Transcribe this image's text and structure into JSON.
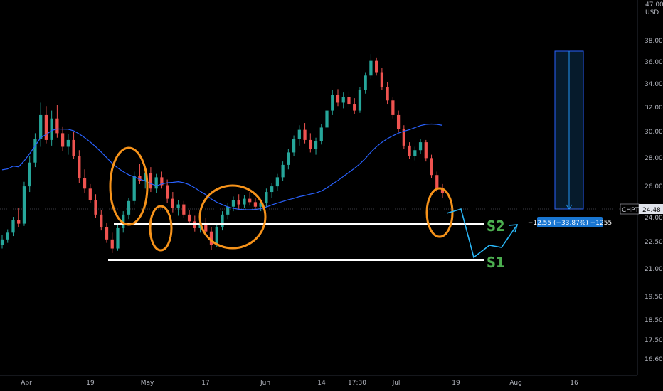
{
  "chart_data": {
    "type": "candlestick",
    "symbol": "CHPT",
    "last_price": "24.48",
    "currency": "USD",
    "y_axis_ticks": [
      "38.00",
      "36.00",
      "34.00",
      "32.00",
      "30.00",
      "28.00",
      "26.00",
      "24.00",
      "22.50",
      "21.00",
      "19.50",
      "18.50",
      "17.50",
      "16.60"
    ],
    "y_axis_top_label": "47.00",
    "x_axis_ticks": [
      "Apr",
      "19",
      "May",
      "17",
      "Jun",
      "14",
      "17:30",
      "Jul",
      "19",
      "Aug",
      "16"
    ],
    "moving_average_color": "#2962ff",
    "support_levels": [
      {
        "name": "S2",
        "price": 23.6
      },
      {
        "name": "S1",
        "price": 21.6
      }
    ],
    "measure_label": "−12.55 (−33.87%) −1255",
    "candles": [
      {
        "o": 19.9,
        "h": 20.8,
        "l": 19.6,
        "c": 20.4
      },
      {
        "o": 20.4,
        "h": 21.3,
        "l": 20.1,
        "c": 21.0
      },
      {
        "o": 21.0,
        "h": 22.4,
        "l": 20.7,
        "c": 22.1
      },
      {
        "o": 22.1,
        "h": 23.2,
        "l": 21.5,
        "c": 21.8
      },
      {
        "o": 21.8,
        "h": 25.5,
        "l": 21.6,
        "c": 25.1
      },
      {
        "o": 25.1,
        "h": 27.8,
        "l": 24.6,
        "c": 27.2
      },
      {
        "o": 27.2,
        "h": 29.8,
        "l": 26.8,
        "c": 29.3
      },
      {
        "o": 29.3,
        "h": 32.5,
        "l": 28.6,
        "c": 31.4
      },
      {
        "o": 31.4,
        "h": 32.2,
        "l": 28.9,
        "c": 29.2
      },
      {
        "o": 29.2,
        "h": 31.8,
        "l": 28.7,
        "c": 31.1
      },
      {
        "o": 31.1,
        "h": 32.3,
        "l": 29.4,
        "c": 29.8
      },
      {
        "o": 29.8,
        "h": 30.4,
        "l": 28.2,
        "c": 28.6
      },
      {
        "o": 28.6,
        "h": 29.7,
        "l": 27.9,
        "c": 29.2
      },
      {
        "o": 29.2,
        "h": 29.9,
        "l": 27.5,
        "c": 27.8
      },
      {
        "o": 27.8,
        "h": 28.3,
        "l": 25.4,
        "c": 25.8
      },
      {
        "o": 25.8,
        "h": 26.6,
        "l": 24.5,
        "c": 24.9
      },
      {
        "o": 24.9,
        "h": 25.3,
        "l": 23.6,
        "c": 23.9
      },
      {
        "o": 23.9,
        "h": 24.4,
        "l": 22.3,
        "c": 22.6
      },
      {
        "o": 22.6,
        "h": 23.0,
        "l": 21.2,
        "c": 21.5
      },
      {
        "o": 21.5,
        "h": 21.9,
        "l": 20.1,
        "c": 20.4
      },
      {
        "o": 20.4,
        "h": 21.0,
        "l": 19.2,
        "c": 19.6
      },
      {
        "o": 19.6,
        "h": 21.7,
        "l": 19.4,
        "c": 21.4
      },
      {
        "o": 21.4,
        "h": 22.9,
        "l": 21.0,
        "c": 22.6
      },
      {
        "o": 22.6,
        "h": 24.1,
        "l": 22.2,
        "c": 23.8
      },
      {
        "o": 23.8,
        "h": 26.4,
        "l": 23.5,
        "c": 26.0
      },
      {
        "o": 26.0,
        "h": 27.1,
        "l": 25.3,
        "c": 25.6
      },
      {
        "o": 25.6,
        "h": 26.7,
        "l": 24.9,
        "c": 26.3
      },
      {
        "o": 26.3,
        "h": 26.8,
        "l": 24.6,
        "c": 24.9
      },
      {
        "o": 24.9,
        "h": 26.2,
        "l": 24.5,
        "c": 25.9
      },
      {
        "o": 25.9,
        "h": 26.4,
        "l": 24.9,
        "c": 25.2
      },
      {
        "o": 25.2,
        "h": 25.7,
        "l": 23.6,
        "c": 24.0
      },
      {
        "o": 24.0,
        "h": 24.6,
        "l": 22.8,
        "c": 23.2
      },
      {
        "o": 23.2,
        "h": 23.9,
        "l": 22.5,
        "c": 23.5
      },
      {
        "o": 23.5,
        "h": 23.8,
        "l": 22.3,
        "c": 22.6
      },
      {
        "o": 22.6,
        "h": 23.0,
        "l": 21.7,
        "c": 22.0
      },
      {
        "o": 22.0,
        "h": 22.5,
        "l": 21.1,
        "c": 21.4
      },
      {
        "o": 21.4,
        "h": 22.2,
        "l": 21.0,
        "c": 21.9
      },
      {
        "o": 21.9,
        "h": 22.3,
        "l": 20.8,
        "c": 21.1
      },
      {
        "o": 21.1,
        "h": 21.5,
        "l": 19.5,
        "c": 19.9
      },
      {
        "o": 19.9,
        "h": 21.8,
        "l": 19.7,
        "c": 21.5
      },
      {
        "o": 21.5,
        "h": 22.9,
        "l": 21.2,
        "c": 22.6
      },
      {
        "o": 22.6,
        "h": 23.6,
        "l": 22.2,
        "c": 23.3
      },
      {
        "o": 23.3,
        "h": 24.2,
        "l": 22.9,
        "c": 23.9
      },
      {
        "o": 23.9,
        "h": 24.4,
        "l": 23.1,
        "c": 23.5
      },
      {
        "o": 23.5,
        "h": 24.3,
        "l": 23.2,
        "c": 24.0
      },
      {
        "o": 24.0,
        "h": 24.6,
        "l": 23.4,
        "c": 23.7
      },
      {
        "o": 23.7,
        "h": 24.1,
        "l": 23.0,
        "c": 23.3
      },
      {
        "o": 23.3,
        "h": 23.9,
        "l": 22.9,
        "c": 23.6
      },
      {
        "o": 23.6,
        "h": 24.9,
        "l": 23.3,
        "c": 24.6
      },
      {
        "o": 24.6,
        "h": 25.4,
        "l": 24.1,
        "c": 25.1
      },
      {
        "o": 25.1,
        "h": 26.2,
        "l": 24.7,
        "c": 25.9
      },
      {
        "o": 25.9,
        "h": 27.3,
        "l": 25.6,
        "c": 27.0
      },
      {
        "o": 27.0,
        "h": 28.4,
        "l": 26.6,
        "c": 28.1
      },
      {
        "o": 28.1,
        "h": 29.6,
        "l": 27.8,
        "c": 29.3
      },
      {
        "o": 29.3,
        "h": 30.5,
        "l": 28.7,
        "c": 30.1
      },
      {
        "o": 30.1,
        "h": 30.7,
        "l": 28.9,
        "c": 29.2
      },
      {
        "o": 29.2,
        "h": 29.8,
        "l": 28.1,
        "c": 28.4
      },
      {
        "o": 28.4,
        "h": 29.4,
        "l": 27.9,
        "c": 29.1
      },
      {
        "o": 29.1,
        "h": 30.6,
        "l": 28.8,
        "c": 30.3
      },
      {
        "o": 30.3,
        "h": 32.1,
        "l": 30.0,
        "c": 31.8
      },
      {
        "o": 31.8,
        "h": 33.6,
        "l": 31.4,
        "c": 33.2
      },
      {
        "o": 33.2,
        "h": 33.7,
        "l": 32.2,
        "c": 32.5
      },
      {
        "o": 32.5,
        "h": 33.4,
        "l": 32.0,
        "c": 33.0
      },
      {
        "o": 33.0,
        "h": 33.5,
        "l": 32.1,
        "c": 32.4
      },
      {
        "o": 32.4,
        "h": 32.9,
        "l": 31.5,
        "c": 31.8
      },
      {
        "o": 31.8,
        "h": 33.9,
        "l": 31.6,
        "c": 33.6
      },
      {
        "o": 33.6,
        "h": 35.2,
        "l": 33.3,
        "c": 34.9
      },
      {
        "o": 34.9,
        "h": 36.8,
        "l": 34.6,
        "c": 36.2
      },
      {
        "o": 36.2,
        "h": 36.5,
        "l": 34.9,
        "c": 35.2
      },
      {
        "o": 35.2,
        "h": 35.6,
        "l": 33.6,
        "c": 33.9
      },
      {
        "o": 33.9,
        "h": 34.3,
        "l": 32.4,
        "c": 32.7
      },
      {
        "o": 32.7,
        "h": 33.0,
        "l": 31.1,
        "c": 31.4
      },
      {
        "o": 31.4,
        "h": 31.8,
        "l": 29.9,
        "c": 30.2
      },
      {
        "o": 30.2,
        "h": 30.5,
        "l": 28.4,
        "c": 28.7
      },
      {
        "o": 28.7,
        "h": 29.0,
        "l": 27.5,
        "c": 27.8
      },
      {
        "o": 27.8,
        "h": 28.6,
        "l": 27.4,
        "c": 28.3
      },
      {
        "o": 28.3,
        "h": 29.3,
        "l": 28.0,
        "c": 29.0
      },
      {
        "o": 29.0,
        "h": 29.2,
        "l": 27.3,
        "c": 27.6
      },
      {
        "o": 27.6,
        "h": 27.9,
        "l": 25.8,
        "c": 26.1
      },
      {
        "o": 26.1,
        "h": 26.4,
        "l": 24.6,
        "c": 24.9
      },
      {
        "o": 24.9,
        "h": 25.3,
        "l": 24.1,
        "c": 24.48
      }
    ]
  }
}
